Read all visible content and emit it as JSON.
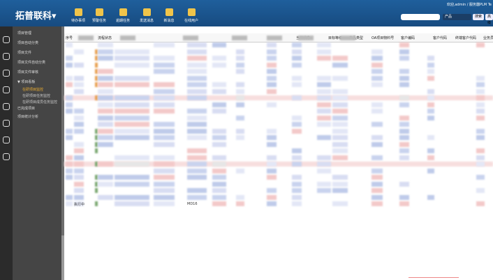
{
  "header": {
    "logo": "拓普联科▾",
    "user_info": "欢迎,admin / 服务器PLM Te",
    "toolbar": [
      "待办事项",
      "预警任务",
      "逾期任务",
      "发送消息",
      "新消息",
      "在线用户"
    ],
    "search_scope": "产品",
    "search_button": "搜索",
    "advanced_button": "高级"
  },
  "sidebar": {
    "items": [
      "项目管理",
      "项目自动分类",
      "项目文件",
      "项目文件自动分类",
      "项目文件审核",
      "▼ 项目看板",
      "在研项目监控",
      "在研项目任务监控",
      "在研项目成员任务监控",
      "已完成项目",
      "项目统计分析"
    ]
  },
  "table": {
    "headers": [
      "序号",
      "流程状态",
      "当前状态",
      "目标等级",
      "产品类型",
      "OA项目物料号",
      "客户编码",
      "客户代码",
      "终端客户代码",
      "业务员"
    ],
    "last_row": [
      "执行中",
      "MD16"
    ]
  }
}
